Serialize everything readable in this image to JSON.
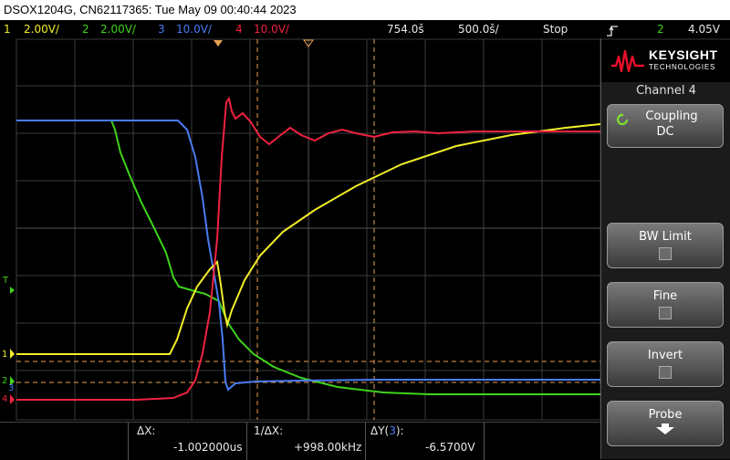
{
  "title": "DSOX1204G, CN62117365: Tue May 09 00:40:44 2023",
  "status": {
    "ch1_num": "1",
    "ch1_scale": "2.00V/",
    "ch2_num": "2",
    "ch2_scale": "2.00V/",
    "ch3_num": "3",
    "ch3_scale": "10.0V/",
    "ch4_num": "4",
    "ch4_scale": "10.0V/",
    "delay": "754.0š",
    "timebase": "500.0š/",
    "run_state": "Stop",
    "trigger_icon": "trigger-edge-icon",
    "trigger_source": "2",
    "trigger_level": "4.05V"
  },
  "panel": {
    "brand": "KEYSIGHT",
    "brand_sub": "TECHNOLOGIES",
    "menu_title": "Channel 4",
    "coupling_label": "Coupling",
    "coupling_value": "DC",
    "bw_limit_label": "BW Limit",
    "fine_label": "Fine",
    "invert_label": "Invert",
    "probe_label": "Probe"
  },
  "markers": {
    "trigger_marker": "T",
    "ch1_marker": "1",
    "ch2_marker": "2",
    "ch3_marker": "3",
    "ch4_marker": "4"
  },
  "measurements": {
    "dx_label": "ΔX:",
    "dx_value": "-1.002000us",
    "inv_dx_label": "1/ΔX:",
    "inv_dx_value": "+998.00kHz",
    "dy_label": "ΔY(",
    "dy_channel": "3",
    "dy_label_end": "):",
    "dy_value": "-6.5700V"
  },
  "colors": {
    "ch1": "#f2ee2a",
    "ch2": "#3ed41a",
    "ch3": "#4a7bf2",
    "ch4": "#f0223f",
    "cursor": "#e8a050",
    "grid": "#3a3a3a"
  }
}
